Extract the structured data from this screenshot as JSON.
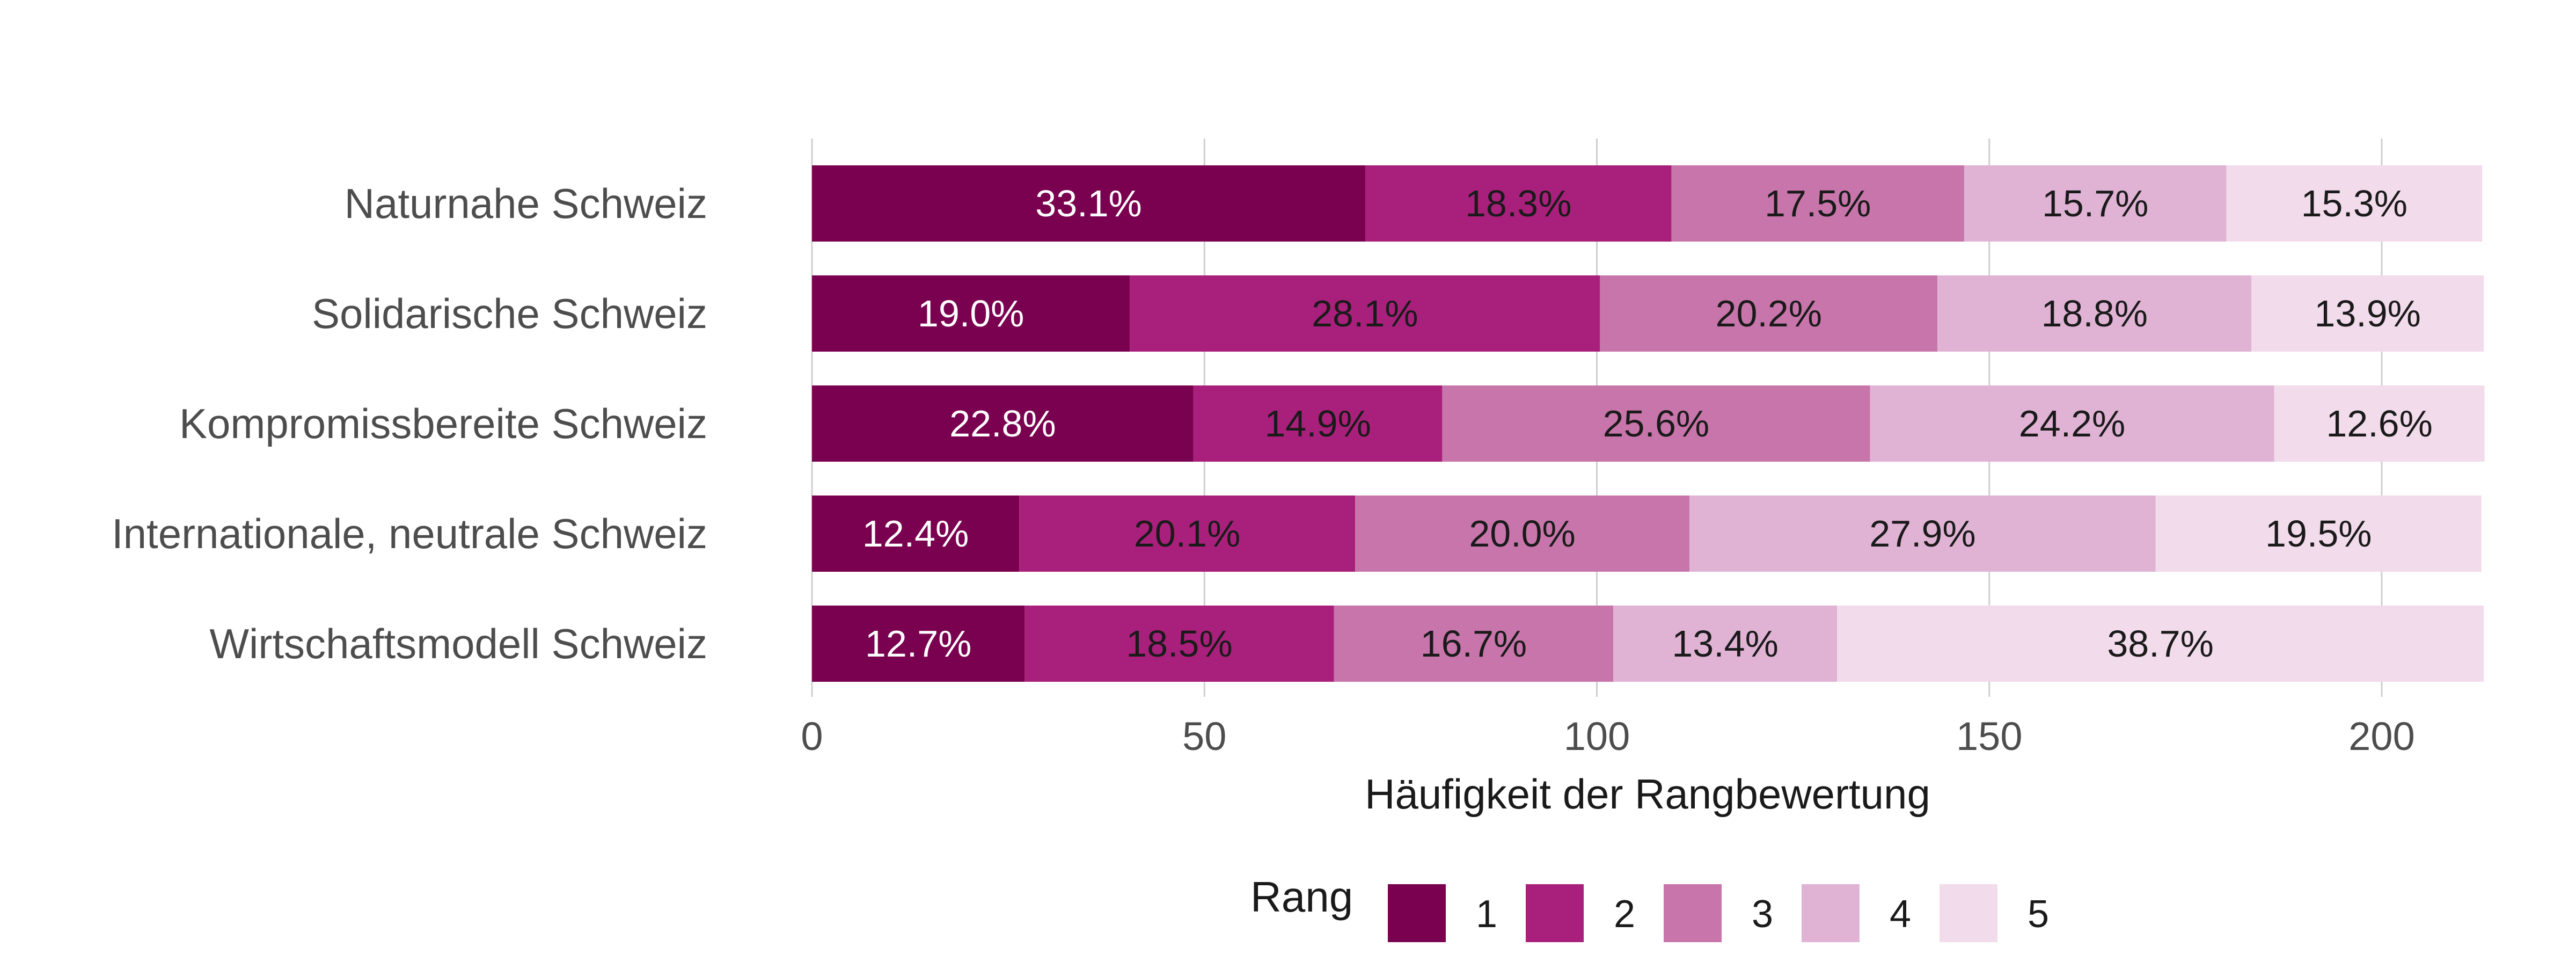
{
  "chart_data": {
    "type": "bar",
    "orientation": "horizontal",
    "stacked": true,
    "title": "",
    "xlabel": "Häufigkeit der Rangbewertung",
    "ylabel": "",
    "xlim": [
      0,
      213
    ],
    "x_ticks": [
      0,
      50,
      100,
      150,
      200
    ],
    "x_tick_labels": [
      "0",
      "50",
      "100",
      "150",
      "200"
    ],
    "grid": "vertical major",
    "categories": [
      "Naturnahe Schweiz",
      "Solidarische Schweiz",
      "Kompromissbereite Schweiz",
      "Internationale, neutrale Schweiz",
      "Wirtschaftsmodell Schweiz"
    ],
    "series": [
      {
        "name": "1",
        "color": "#7a0050",
        "label_color": "#ffffff",
        "values": [
          70.5,
          40.5,
          48.6,
          26.4,
          27.1
        ],
        "labels": [
          "33.1%",
          "19.0%",
          "22.8%",
          "12.4%",
          "12.7%"
        ]
      },
      {
        "name": "2",
        "color": "#a8207b",
        "label_color": "#1a1a1a",
        "values": [
          39.0,
          59.9,
          31.7,
          42.8,
          39.4
        ],
        "labels": [
          "18.3%",
          "28.1%",
          "14.9%",
          "20.1%",
          "18.5%"
        ]
      },
      {
        "name": "3",
        "color": "#c775aa",
        "label_color": "#1a1a1a",
        "values": [
          37.3,
          43.0,
          54.5,
          42.6,
          35.6
        ],
        "labels": [
          "17.5%",
          "20.2%",
          "25.6%",
          "20.0%",
          "16.7%"
        ]
      },
      {
        "name": "4",
        "color": "#e0b3d5",
        "label_color": "#1a1a1a",
        "values": [
          33.4,
          40.0,
          51.5,
          59.4,
          28.5
        ],
        "labels": [
          "15.7%",
          "18.8%",
          "24.2%",
          "27.9%",
          "13.4%"
        ]
      },
      {
        "name": "5",
        "color": "#f2dbeb",
        "label_color": "#1a1a1a",
        "values": [
          32.6,
          29.6,
          26.8,
          41.5,
          82.4
        ],
        "labels": [
          "15.3%",
          "13.9%",
          "12.6%",
          "19.5%",
          "38.7%"
        ]
      }
    ],
    "legend": {
      "title": "Rang",
      "position": "bottom",
      "entries": [
        "1",
        "2",
        "3",
        "4",
        "5"
      ]
    }
  }
}
